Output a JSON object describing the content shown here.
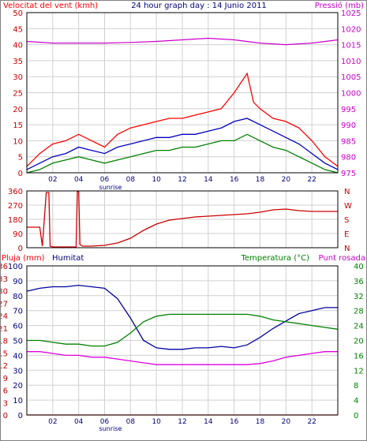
{
  "title": "24 hour graph day : 14 Junio 2011",
  "colors": {
    "wind": "#ff0000",
    "wind_avg": "#0000c0",
    "wind_min": "#008000",
    "pressure": "#cc00cc",
    "direction": "#cc0000",
    "humidity": "#0000a0",
    "temperature": "#008000",
    "dewpoint": "#dd00dd",
    "rain": "#ff0000",
    "grid": "#d0d0d0"
  },
  "panels": {
    "wind": {
      "left_label": "Velocitat del vent (kmh)",
      "right_label": "Pressió (mb)",
      "left_ticks": [
        "0",
        "5",
        "10",
        "15",
        "20",
        "25",
        "30",
        "35",
        "40",
        "45",
        "50"
      ],
      "right_ticks": [
        "975",
        "980",
        "985",
        "990",
        "995",
        "1000",
        "1005",
        "1010",
        "1015",
        "1020",
        "1025"
      ],
      "x_ticks": [
        "02",
        "04",
        "06",
        "08",
        "10",
        "12",
        "14",
        "16",
        "18",
        "20",
        "22"
      ],
      "sunrise_label": "sunrise"
    },
    "direction": {
      "left_ticks": [
        "360",
        "270",
        "180",
        "90",
        "0"
      ],
      "right_ticks": [
        "N",
        "W",
        "S",
        "E",
        "N"
      ]
    },
    "weather": {
      "left_label_1": "Pluja (mm)",
      "left_label_2": "Humitat",
      "right_label_1": "Temperatura (°C)",
      "right_label_2": "Punt rosada",
      "left_ticks_outer": [
        "0",
        "3",
        "6",
        "9",
        "12",
        "15",
        "18",
        "21",
        "24",
        "27",
        "30",
        "33",
        "36"
      ],
      "left_ticks_inner": [
        "0",
        "10",
        "20",
        "30",
        "40",
        "50",
        "60",
        "70",
        "80",
        "90",
        "100"
      ],
      "right_ticks": [
        "0",
        "4",
        "8",
        "12",
        "16",
        "20",
        "24",
        "28",
        "32",
        "36",
        "40"
      ],
      "x_ticks": [
        "02",
        "04",
        "06",
        "08",
        "10",
        "12",
        "14",
        "16",
        "18",
        "20",
        "22"
      ],
      "sunrise_label": "sunrise"
    }
  },
  "chart_data": [
    {
      "type": "line",
      "title": "24 hour graph day : 14 Junio 2011",
      "xlabel": "",
      "ylabel": "Velocitat del vent (kmh)",
      "y2label": "Pressió (mb)",
      "xlim": [
        0,
        24
      ],
      "ylim": [
        0,
        50
      ],
      "y2lim": [
        975,
        1025
      ],
      "series": [
        {
          "name": "",
          "color_key": "wind",
          "x": [
            0,
            1,
            2,
            3,
            4,
            5,
            6,
            7,
            8,
            9,
            10,
            11,
            12,
            13,
            14,
            15,
            16,
            17,
            17.5,
            18,
            19,
            20,
            21,
            22,
            23,
            24
          ],
          "values": [
            2,
            6,
            9,
            10,
            12,
            10,
            8,
            12,
            14,
            15,
            16,
            17,
            17,
            18,
            19,
            20,
            25,
            31,
            22,
            20,
            17,
            16,
            14,
            10,
            5,
            2
          ]
        },
        {
          "name": "",
          "color_key": "wind_avg",
          "x": [
            0,
            1,
            2,
            3,
            4,
            5,
            6,
            7,
            8,
            9,
            10,
            11,
            12,
            13,
            14,
            15,
            16,
            17,
            18,
            19,
            20,
            21,
            22,
            23,
            24
          ],
          "values": [
            1,
            3,
            5,
            6,
            8,
            7,
            6,
            8,
            9,
            10,
            11,
            11,
            12,
            12,
            13,
            14,
            16,
            17,
            15,
            13,
            11,
            9,
            6,
            3,
            1
          ]
        },
        {
          "name": "",
          "color_key": "wind_min",
          "x": [
            0,
            1,
            2,
            3,
            4,
            5,
            6,
            7,
            8,
            9,
            10,
            11,
            12,
            13,
            14,
            15,
            16,
            17,
            18,
            19,
            20,
            21,
            22,
            23,
            24
          ],
          "values": [
            0,
            1,
            3,
            4,
            5,
            4,
            3,
            4,
            5,
            6,
            7,
            7,
            8,
            8,
            9,
            10,
            10,
            12,
            10,
            8,
            7,
            5,
            3,
            1,
            0
          ]
        },
        {
          "name": "",
          "color_key": "pressure",
          "axis": "right",
          "x": [
            0,
            2,
            4,
            6,
            8,
            10,
            12,
            14,
            16,
            18,
            20,
            22,
            24
          ],
          "values": [
            1016,
            1015.5,
            1015.5,
            1015.5,
            1015.7,
            1016,
            1016.5,
            1017,
            1016.5,
            1015.5,
            1015,
            1015.5,
            1016.5
          ]
        }
      ]
    },
    {
      "type": "line",
      "title": "",
      "ylabel": "",
      "xlim": [
        0,
        24
      ],
      "ylim": [
        0,
        360
      ],
      "series": [
        {
          "name": "",
          "color_key": "direction",
          "x": [
            0,
            1,
            1.2,
            1.5,
            1.7,
            1.8,
            2,
            3,
            3.8,
            3.9,
            4,
            4.1,
            4.3,
            5,
            6,
            7,
            8,
            9,
            10,
            11,
            12,
            13,
            14,
            15,
            16,
            17,
            18,
            19,
            20,
            21,
            22,
            23,
            24
          ],
          "values": [
            130,
            130,
            10,
            350,
            350,
            10,
            5,
            5,
            5,
            355,
            355,
            20,
            10,
            10,
            15,
            30,
            60,
            110,
            150,
            175,
            185,
            195,
            200,
            205,
            210,
            215,
            225,
            240,
            245,
            235,
            230,
            230,
            230
          ]
        }
      ]
    },
    {
      "type": "line",
      "title": "",
      "ylabel": "Pluja (mm) / Humitat",
      "y2label": "Temperatura (°C) / Punt rosada",
      "xlim": [
        0,
        24
      ],
      "ylim": [
        0,
        100
      ],
      "y2lim": [
        0,
        40
      ],
      "series": [
        {
          "name": "Humitat",
          "color_key": "humidity",
          "x": [
            0,
            1,
            2,
            3,
            4,
            5,
            6,
            7,
            8,
            9,
            10,
            11,
            12,
            13,
            14,
            15,
            16,
            17,
            18,
            19,
            20,
            21,
            22,
            23,
            24
          ],
          "values": [
            83,
            85,
            86,
            86,
            87,
            86,
            85,
            78,
            65,
            50,
            45,
            44,
            44,
            45,
            45,
            46,
            45,
            47,
            52,
            58,
            63,
            68,
            70,
            72,
            72
          ]
        },
        {
          "name": "Temperatura (°C)",
          "color_key": "temperature",
          "axis": "right",
          "x": [
            0,
            1,
            2,
            3,
            4,
            5,
            6,
            7,
            8,
            9,
            10,
            11,
            12,
            13,
            14,
            15,
            16,
            17,
            18,
            19,
            20,
            21,
            22,
            23,
            24
          ],
          "values": [
            20,
            20,
            19.5,
            19,
            19,
            18.5,
            18.5,
            19.5,
            22,
            25,
            26.5,
            27,
            27,
            27,
            27,
            27,
            27,
            27,
            26.5,
            25.5,
            25,
            24.5,
            24,
            23.5,
            23
          ]
        },
        {
          "name": "Punt rosada",
          "color_key": "dewpoint",
          "axis": "right",
          "x": [
            0,
            1,
            2,
            3,
            4,
            5,
            6,
            7,
            8,
            9,
            10,
            11,
            12,
            13,
            14,
            15,
            16,
            17,
            18,
            19,
            20,
            21,
            22,
            23,
            24
          ],
          "values": [
            17,
            17,
            16.5,
            16,
            16,
            15.5,
            15.5,
            15,
            14.5,
            14,
            13.5,
            13.5,
            13.5,
            13.5,
            13.5,
            13.5,
            13.5,
            13.5,
            13.8,
            14.5,
            15.5,
            16,
            16.5,
            17,
            17
          ]
        },
        {
          "name": "Pluja (mm)",
          "color_key": "rain",
          "x": [
            0,
            24
          ],
          "values": [
            0,
            0
          ]
        }
      ]
    }
  ]
}
